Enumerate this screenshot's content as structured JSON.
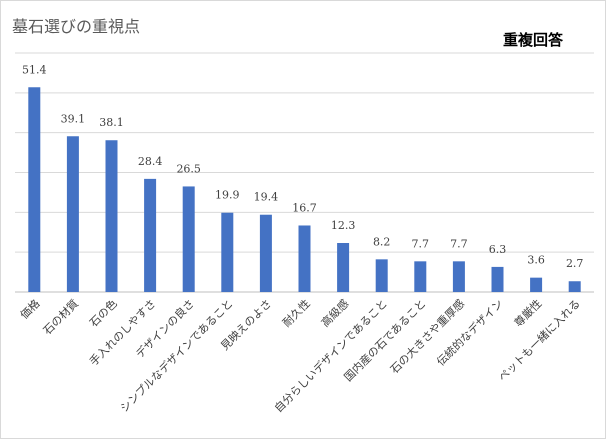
{
  "chart_data": {
    "type": "bar",
    "title": "墓石選びの重視点",
    "note": "重複回答",
    "categories": [
      "価格",
      "石の材質",
      "石の色",
      "手入れのしやすさ",
      "デザインの良さ",
      "シンプルなデザインであること",
      "見映えのよさ",
      "耐久性",
      "高級感",
      "自分らしいデザインであること",
      "国内産の石であること",
      "石の大きさや重厚感",
      "伝統的なデザイン",
      "尊厳性",
      "ペットも一緒に入れる"
    ],
    "values": [
      51.4,
      39.1,
      38.1,
      28.4,
      26.5,
      19.9,
      19.4,
      16.7,
      12.3,
      8.2,
      7.7,
      7.7,
      6.3,
      3.6,
      2.7
    ],
    "value_labels": [
      "51.4",
      "39.1",
      "38.1",
      "28.4",
      "26.5",
      "19.9",
      "19.4",
      "16.7",
      "12.3",
      "8.2",
      "7.7",
      "7.7",
      "6.3",
      "3.6",
      "2.7"
    ],
    "ylim": [
      0,
      60
    ],
    "gridlines": true,
    "bar_color": "#4472c4",
    "xlabel": "",
    "ylabel": ""
  }
}
